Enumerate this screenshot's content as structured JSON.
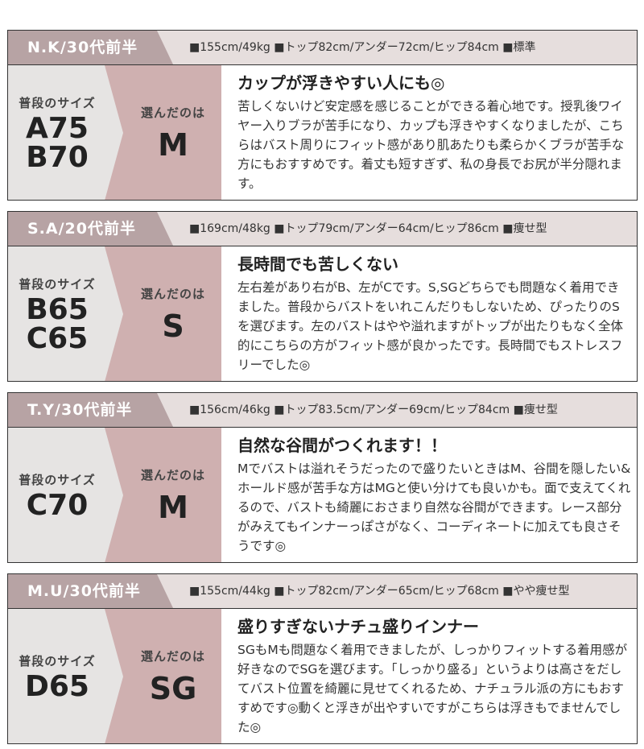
{
  "labels": {
    "usual": "普段のサイズ",
    "chosen": "選んだのは"
  },
  "colors": {
    "header_name_bg": "#b7a3a4",
    "header_bg": "#e6dedd",
    "usual_bg": "#e6e4e3",
    "chosen_bg": "#cfb0b0"
  },
  "reviews": [
    {
      "name": "N.K/30代前半",
      "specs": "■155cm/49kg ■トップ82cm/アンダー72cm/ヒップ84cm ■標準",
      "usual_sizes": [
        "A75",
        "B70"
      ],
      "chosen": "M",
      "title": "カップが浮きやすい人にも◎",
      "text": "苦しくないけど安定感を感じることができる着心地です。授乳後ワイヤー入りブラが苦手になり、カップも浮きやすくなりましたが、こちらはバスト周りにフィット感があり肌あたりも柔らかくブラが苦手な方にもおすすめです。着丈も短すぎず、私の身長でお尻が半分隠れます。"
    },
    {
      "name": "S.A/20代前半",
      "specs": "■169cm/48kg ■トップ79cm/アンダー64cm/ヒップ86cm ■痩せ型",
      "usual_sizes": [
        "B65",
        "C65"
      ],
      "chosen": "S",
      "title": "長時間でも苦しくない",
      "text": "左右差があり右がB、左がCです。S,SGどちらでも問題なく着用できました。普段からバストをいれこんだりもしないため、ぴったりのSを選びます。左のバストはやや溢れますがトップが出たりもなく全体的にこちらの方がフィット感が良かったです。長時間でもストレスフリーでした◎"
    },
    {
      "name": "T.Y/30代前半",
      "specs": "■156cm/46kg ■トップ83.5cm/アンダー69cm/ヒップ84cm ■痩せ型",
      "usual_sizes": [
        "C70"
      ],
      "chosen": "M",
      "title": "自然な谷間がつくれます！！",
      "text": "Mでバストは溢れそうだったので盛りたいときはM、谷間を隠したい&ホールド感が苦手な方はMGと使い分けても良いかも。面で支えてくれるので、バストも綺麗におさまり自然な谷間ができます。レース部分がみえてもインナーっぽさがなく、コーディネートに加えても良さそうです◎"
    },
    {
      "name": "M.U/30代前半",
      "specs": "■155cm/44kg ■トップ82cm/アンダー65cm/ヒップ68cm ■やや痩せ型",
      "usual_sizes": [
        "D65"
      ],
      "chosen": "SG",
      "title": "盛りすぎないナチュ盛りインナー",
      "text": "SGもMも問題なく着用できましたが、しっかりフィットする着用感が好きなのでSGを選びます。「しっかり盛る」というよりは高さをだしてバスト位置を綺麗に見せてくれるため、ナチュラル派の方にもおすすめです◎動くと浮きが出やすいですがこちらは浮きもでませんでした◎"
    }
  ]
}
